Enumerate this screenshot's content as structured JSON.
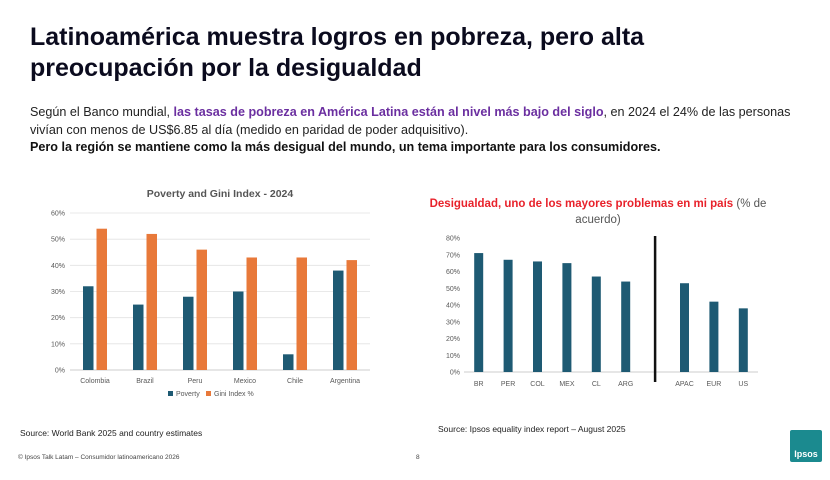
{
  "slide": {
    "title": "Latinoamérica muestra logros en pobreza, pero alta preocupación por la desigualdad",
    "intro_1": "Según el Banco mundial, ",
    "intro_highlight": "las tasas de pobreza en América Latina están al nivel más bajo del siglo",
    "intro_2": ", en 2024 el 24% de las personas vivían con menos de US$6.85 al día (medido en paridad de poder adquisitivo).",
    "intro_bold": "Pero la región se mantiene como la más desigual del mundo, un tema importante para los consumidores.",
    "source_left": "Source: World Bank 2025 and country estimates",
    "source_right": "Source: Ipsos equality index report – August 2025",
    "footer": "© Ipsos  Talk Latam – Consumidor latinoamericano 2026",
    "page_number": "8",
    "logo_text": "Ipsos"
  },
  "colors": {
    "teal": "#1e5a73",
    "orange": "#e8793a",
    "red": "#e8222b",
    "divider": "#111111",
    "logo": "#1b8a8f"
  },
  "chart_data": [
    {
      "type": "bar",
      "title": "Poverty and Gini Index - 2024",
      "categories": [
        "Colombia",
        "Brazil",
        "Peru",
        "Mexico",
        "Chile",
        "Argentina"
      ],
      "series": [
        {
          "name": "Poverty",
          "values": [
            32,
            25,
            28,
            30,
            6,
            38
          ]
        },
        {
          "name": "Gini Index %",
          "values": [
            54,
            52,
            46,
            43,
            43,
            42
          ]
        }
      ],
      "ylim": [
        0,
        60
      ],
      "yticks": [
        "0%",
        "10%",
        "20%",
        "30%",
        "40%",
        "50%",
        "60%"
      ],
      "grid": true,
      "legend": "bottom"
    },
    {
      "type": "bar",
      "title_red": "Desigualdad, uno de los mayores problemas en mi país",
      "title_suffix": "(% de acuerdo)",
      "categories": [
        "BR",
        "PER",
        "COL",
        "MEX",
        "CL",
        "ARG",
        "APAC",
        "EUR",
        "US"
      ],
      "values": [
        71,
        67,
        66,
        65,
        57,
        54,
        53,
        42,
        38
      ],
      "ylim": [
        0,
        80
      ],
      "yticks": [
        "0%",
        "10%",
        "20%",
        "30%",
        "40%",
        "50%",
        "60%",
        "70%",
        "80%"
      ],
      "divider_after": "ARG",
      "grid": false
    }
  ]
}
